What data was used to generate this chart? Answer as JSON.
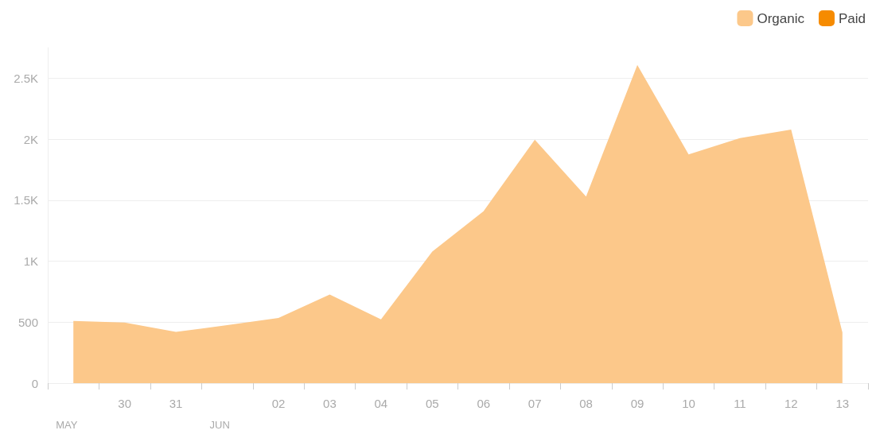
{
  "chart_data": {
    "type": "area",
    "annotations": [
      "MAY",
      "JUN"
    ],
    "categories": [
      null,
      "30",
      "31",
      null,
      "02",
      "03",
      "04",
      "05",
      "06",
      "07",
      "08",
      "09",
      "10",
      "11",
      "12",
      "13"
    ],
    "series": [
      {
        "name": "Organic",
        "color": "#fcc88a",
        "values": [
          510,
          497,
          420,
          475,
          535,
          727,
          523,
          1078,
          1410,
          1996,
          1530,
          2608,
          1875,
          2009,
          2079,
          415
        ]
      },
      {
        "name": "Paid",
        "color": "#f68b00",
        "values": [
          null,
          null,
          null,
          null,
          null,
          null,
          null,
          null,
          null,
          null,
          null,
          null,
          null,
          null,
          null,
          null
        ]
      }
    ],
    "ylim": [
      0,
      2750
    ],
    "yticks": [
      0,
      500,
      {
        "value": 1000,
        "label": "1K"
      },
      {
        "value": 1500,
        "label": "1.5K"
      },
      {
        "value": 2000,
        "label": "2K"
      },
      {
        "value": 2500,
        "label": "2.5K"
      }
    ],
    "grid": "y",
    "legend": "top right",
    "marker": "none"
  }
}
